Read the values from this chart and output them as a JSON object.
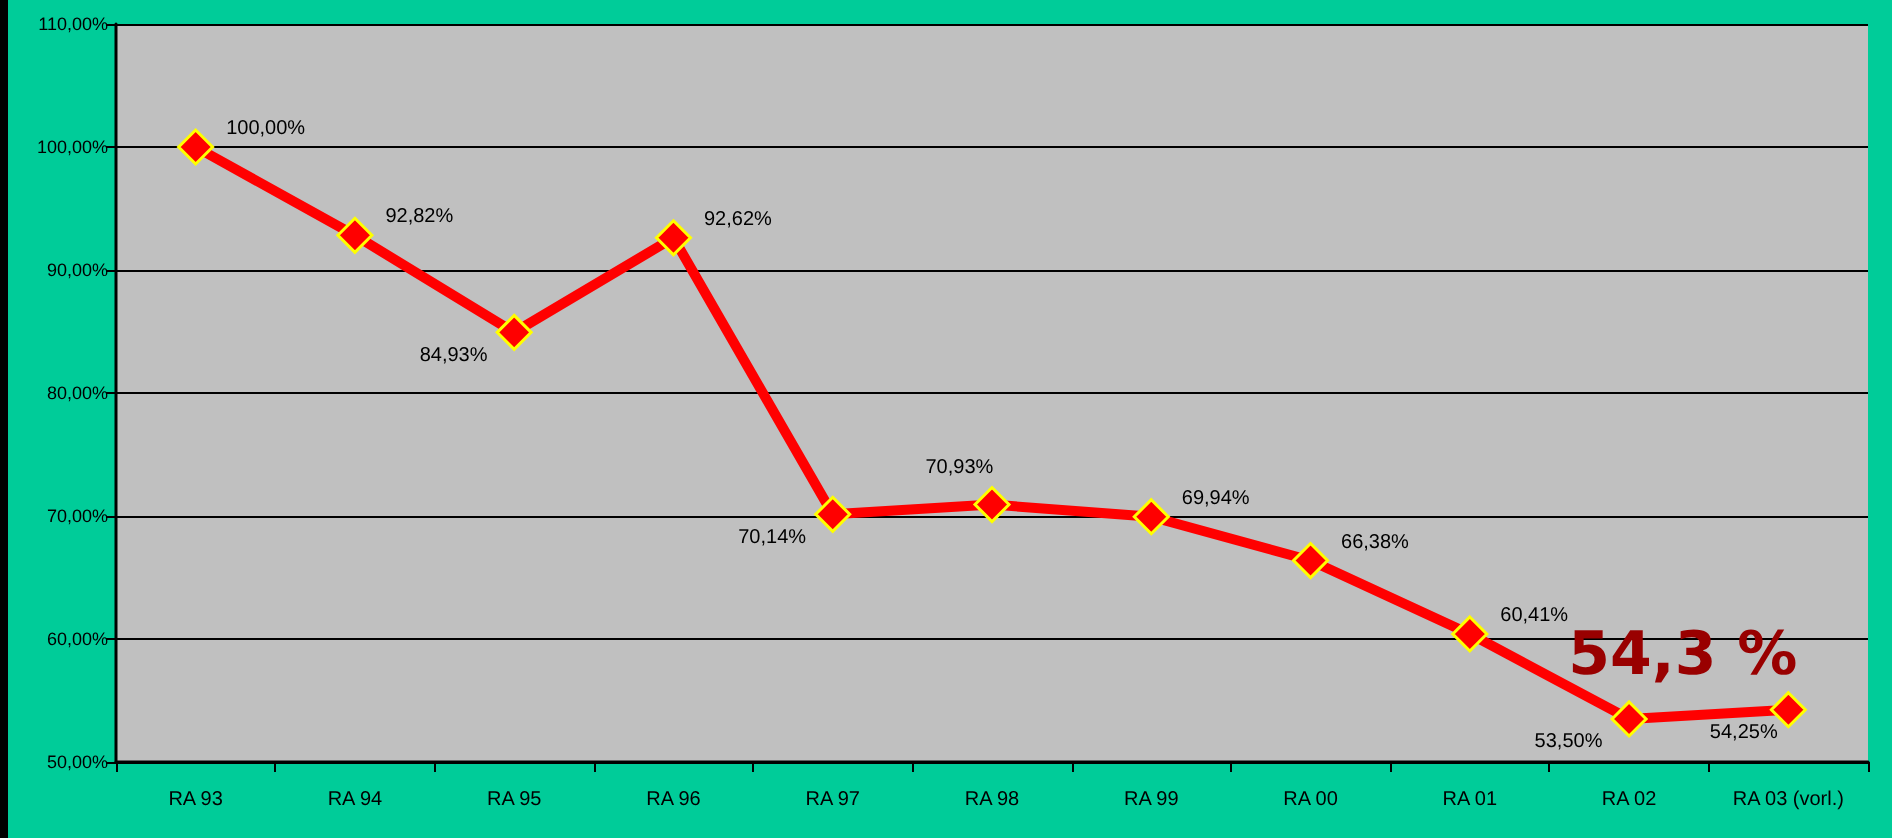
{
  "chart_data": {
    "type": "line",
    "categories": [
      "RA 93",
      "RA 94",
      "RA 95",
      "RA 96",
      "RA 97",
      "RA 98",
      "RA 99",
      "RA 00",
      "RA 01",
      "RA 02",
      "RA 03 (vorl.)"
    ],
    "series": [
      {
        "color": "#ff0000",
        "values": [
          100.0,
          92.82,
          84.93,
          92.62,
          70.14,
          70.93,
          69.94,
          66.38,
          60.41,
          53.5,
          54.25
        ],
        "value_labels": [
          "100,00%",
          "92,82%",
          "84,93%",
          "92,62%",
          "70,14%",
          "70,93%",
          "69,94%",
          "66,38%",
          "60,41%",
          "53,50%",
          "54,25%"
        ]
      }
    ],
    "ylim": [
      50,
      110
    ],
    "yticks": [
      {
        "value": 50,
        "label": "50,00%"
      },
      {
        "value": 60,
        "label": "60,00%"
      },
      {
        "value": 70,
        "label": "70,00%"
      },
      {
        "value": 80,
        "label": "80,00%"
      },
      {
        "value": 90,
        "label": "90,00%"
      },
      {
        "value": 100,
        "label": "100,00%"
      },
      {
        "value": 110,
        "label": "110,00%"
      }
    ],
    "annotations": [
      {
        "text": "54,3 %",
        "x": "RA 03 (vorl.)",
        "y": 54.3
      }
    ],
    "grid": "y",
    "marker": "diamond",
    "line_style": "solid"
  }
}
